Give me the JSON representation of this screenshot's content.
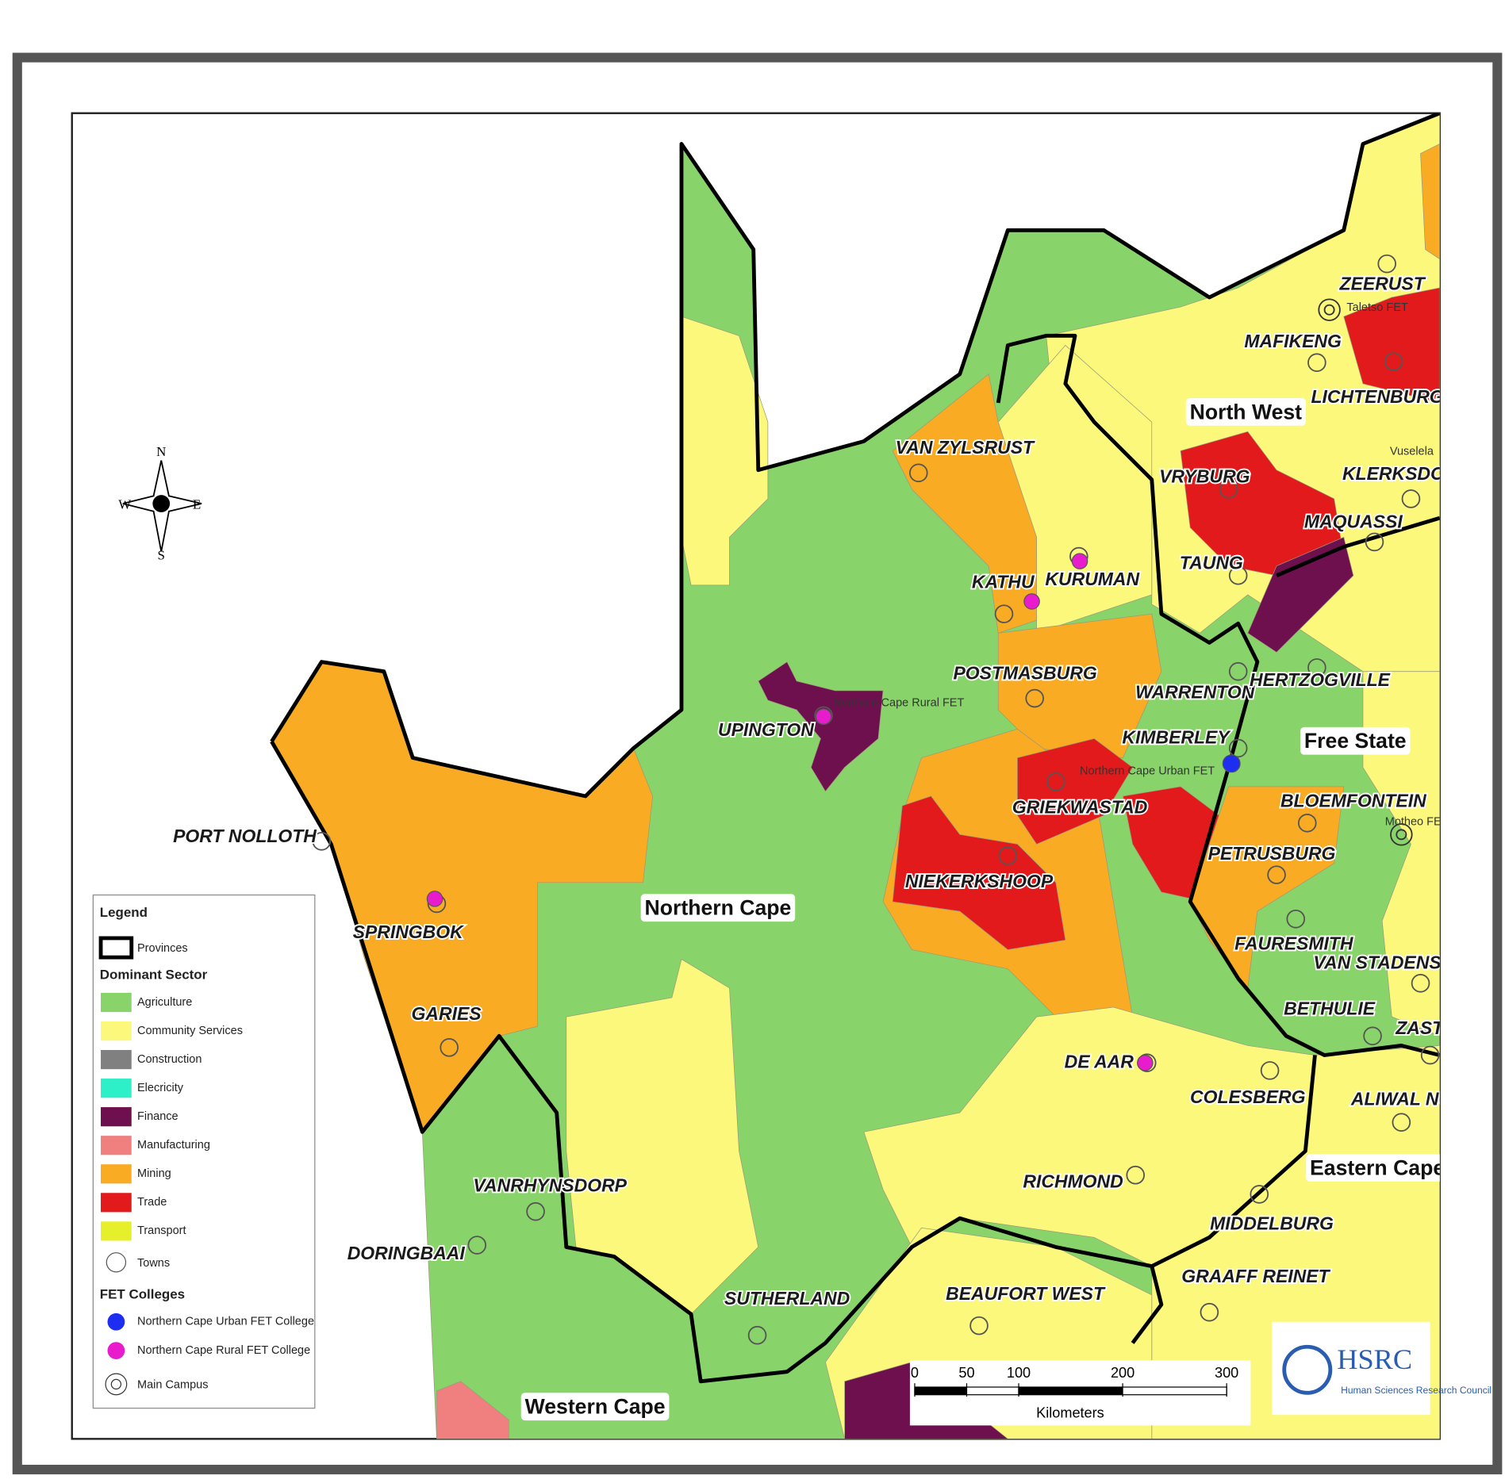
{
  "legend": {
    "title": "Legend",
    "provinces": "Provinces",
    "sector_title": "Dominant Sector",
    "sectors": [
      {
        "name": "Agriculture",
        "color": "#88d46a"
      },
      {
        "name": "Community Services",
        "color": "#fbf87c"
      },
      {
        "name": "Construction",
        "color": "#808080"
      },
      {
        "name": "Elecricity",
        "color": "#2ef0c8"
      },
      {
        "name": "Finance",
        "color": "#6e0f4e"
      },
      {
        "name": "Manufacturing",
        "color": "#f08080"
      },
      {
        "name": "Mining",
        "color": "#f9ab24"
      },
      {
        "name": "Trade",
        "color": "#e31a1c"
      },
      {
        "name": "Transport",
        "color": "#e6f02a"
      }
    ],
    "towns": "Towns",
    "fet_title": "FET Colleges",
    "fet": [
      {
        "name": "Northern Cape Urban FET College",
        "color": "#1e2ef0"
      },
      {
        "name": "Northern Cape Rural FET College",
        "color": "#e81ccd"
      }
    ],
    "main_campus": "Main Campus"
  },
  "compass": {
    "n": "N",
    "s": "S",
    "e": "E",
    "w": "W"
  },
  "provinces": [
    "Northern Cape",
    "North West",
    "Free State",
    "Eastern Cape",
    "Western Cape"
  ],
  "towns": [
    "ZEERUST",
    "MAFIKENG",
    "LICHTENBURG",
    "VAN ZYLSRUST",
    "VRYBURG",
    "KLERKSDORP",
    "MAQUASSI",
    "TAUNG",
    "KATHU",
    "KURUMAN",
    "POSTMASBURG",
    "WARRENTON",
    "HERTZOGVILLE",
    "UPINGTON",
    "KIMBERLEY",
    "GRIEKWASTAD",
    "BLOEMFONTEIN",
    "PORT NOLLOTH",
    "PETRUSBURG",
    "NIEKERKSHOOP",
    "SPRINGBOK",
    "FAURESMITH",
    "VAN STADENSRUS",
    "BETHULIE",
    "GARIES",
    "ZASTRON",
    "DE AAR",
    "COLESBERG",
    "ALIWAL NORTH",
    "VANRHYNSDORP",
    "RICHMOND",
    "MIDDELBURG",
    "DORINGBAAI",
    "GRAAFF REINET",
    "BEAUFORT WEST",
    "SUTHERLAND"
  ],
  "colleges": [
    "Taletso FET",
    "Northern Cape Rural FET",
    "Northern Cape Urban FET",
    "Vuselela",
    "Motheo FE"
  ],
  "scale_bar": {
    "ticks": [
      0,
      50,
      100,
      200,
      300
    ],
    "unit": "Kilometers"
  },
  "logo": {
    "name": "HSRC",
    "subtitle": "Human Sciences Research Council"
  }
}
